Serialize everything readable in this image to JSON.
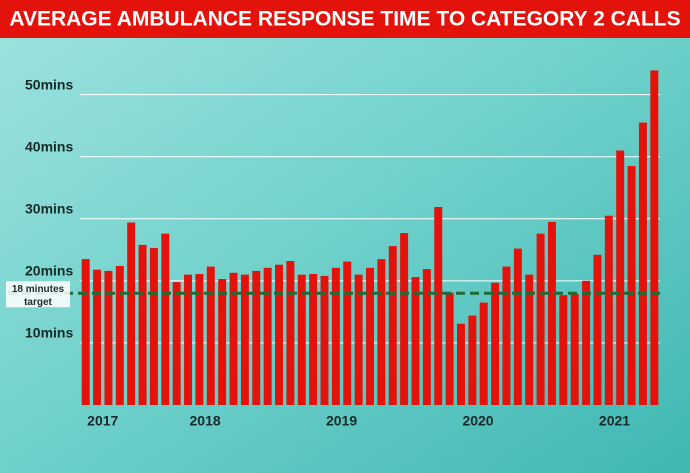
{
  "chart_data": {
    "type": "bar",
    "title": "AVERAGE AMBULANCE RESPONSE TIME TO CATEGORY 2 CALLS",
    "categories": [
      null,
      "2017",
      null,
      null,
      null,
      null,
      null,
      null,
      null,
      null,
      "2018",
      null,
      null,
      null,
      null,
      null,
      null,
      null,
      null,
      null,
      null,
      null,
      "2019",
      null,
      null,
      null,
      null,
      null,
      null,
      null,
      null,
      null,
      null,
      null,
      "2020",
      null,
      null,
      null,
      null,
      null,
      null,
      null,
      null,
      null,
      null,
      null,
      "2021",
      null,
      null,
      null,
      null
    ],
    "values": [
      23.5,
      21.8,
      21.6,
      22.4,
      29.4,
      25.8,
      25.3,
      27.6,
      19.8,
      21,
      21.1,
      22.3,
      20.3,
      21.3,
      21,
      21.6,
      22.1,
      22.6,
      23.2,
      21,
      21.1,
      20.8,
      22.1,
      23.1,
      21,
      22.1,
      23.5,
      25.6,
      27.7,
      20.6,
      21.9,
      31.9,
      18.1,
      13.1,
      14.4,
      16.5,
      19.7,
      22.3,
      25.2,
      21,
      27.6,
      29.5,
      17.7,
      17.9,
      20,
      24.2,
      30.5,
      41,
      38.5,
      45.5,
      53.9
    ],
    "color": "#e3120b",
    "ylim": [
      0,
      58
    ],
    "yticks": [
      {
        "value": 10,
        "label": "10mins"
      },
      {
        "value": 20,
        "label": "20mins"
      },
      {
        "value": 30,
        "label": "30mins"
      },
      {
        "value": 40,
        "label": "40mins"
      },
      {
        "value": 50,
        "label": "50mins"
      }
    ],
    "grid": true,
    "target": {
      "value": 18,
      "label_lines": [
        "18 minutes",
        "target"
      ],
      "color": "#1e6b35"
    }
  }
}
